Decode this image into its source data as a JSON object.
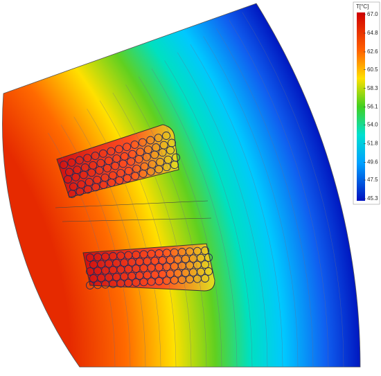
{
  "chart_data": {
    "type": "heatmap",
    "colorbar_title": "T[°C]",
    "clim": [
      45.3,
      67.0
    ],
    "cticks": [
      {
        "value": 67.0,
        "label": "67.0"
      },
      64.8,
      62.6,
      60.5,
      58.3,
      56.1,
      {
        "value": 54.0,
        "label": "54.0"
      },
      51.8,
      49.6,
      47.5,
      45.3
    ]
  }
}
